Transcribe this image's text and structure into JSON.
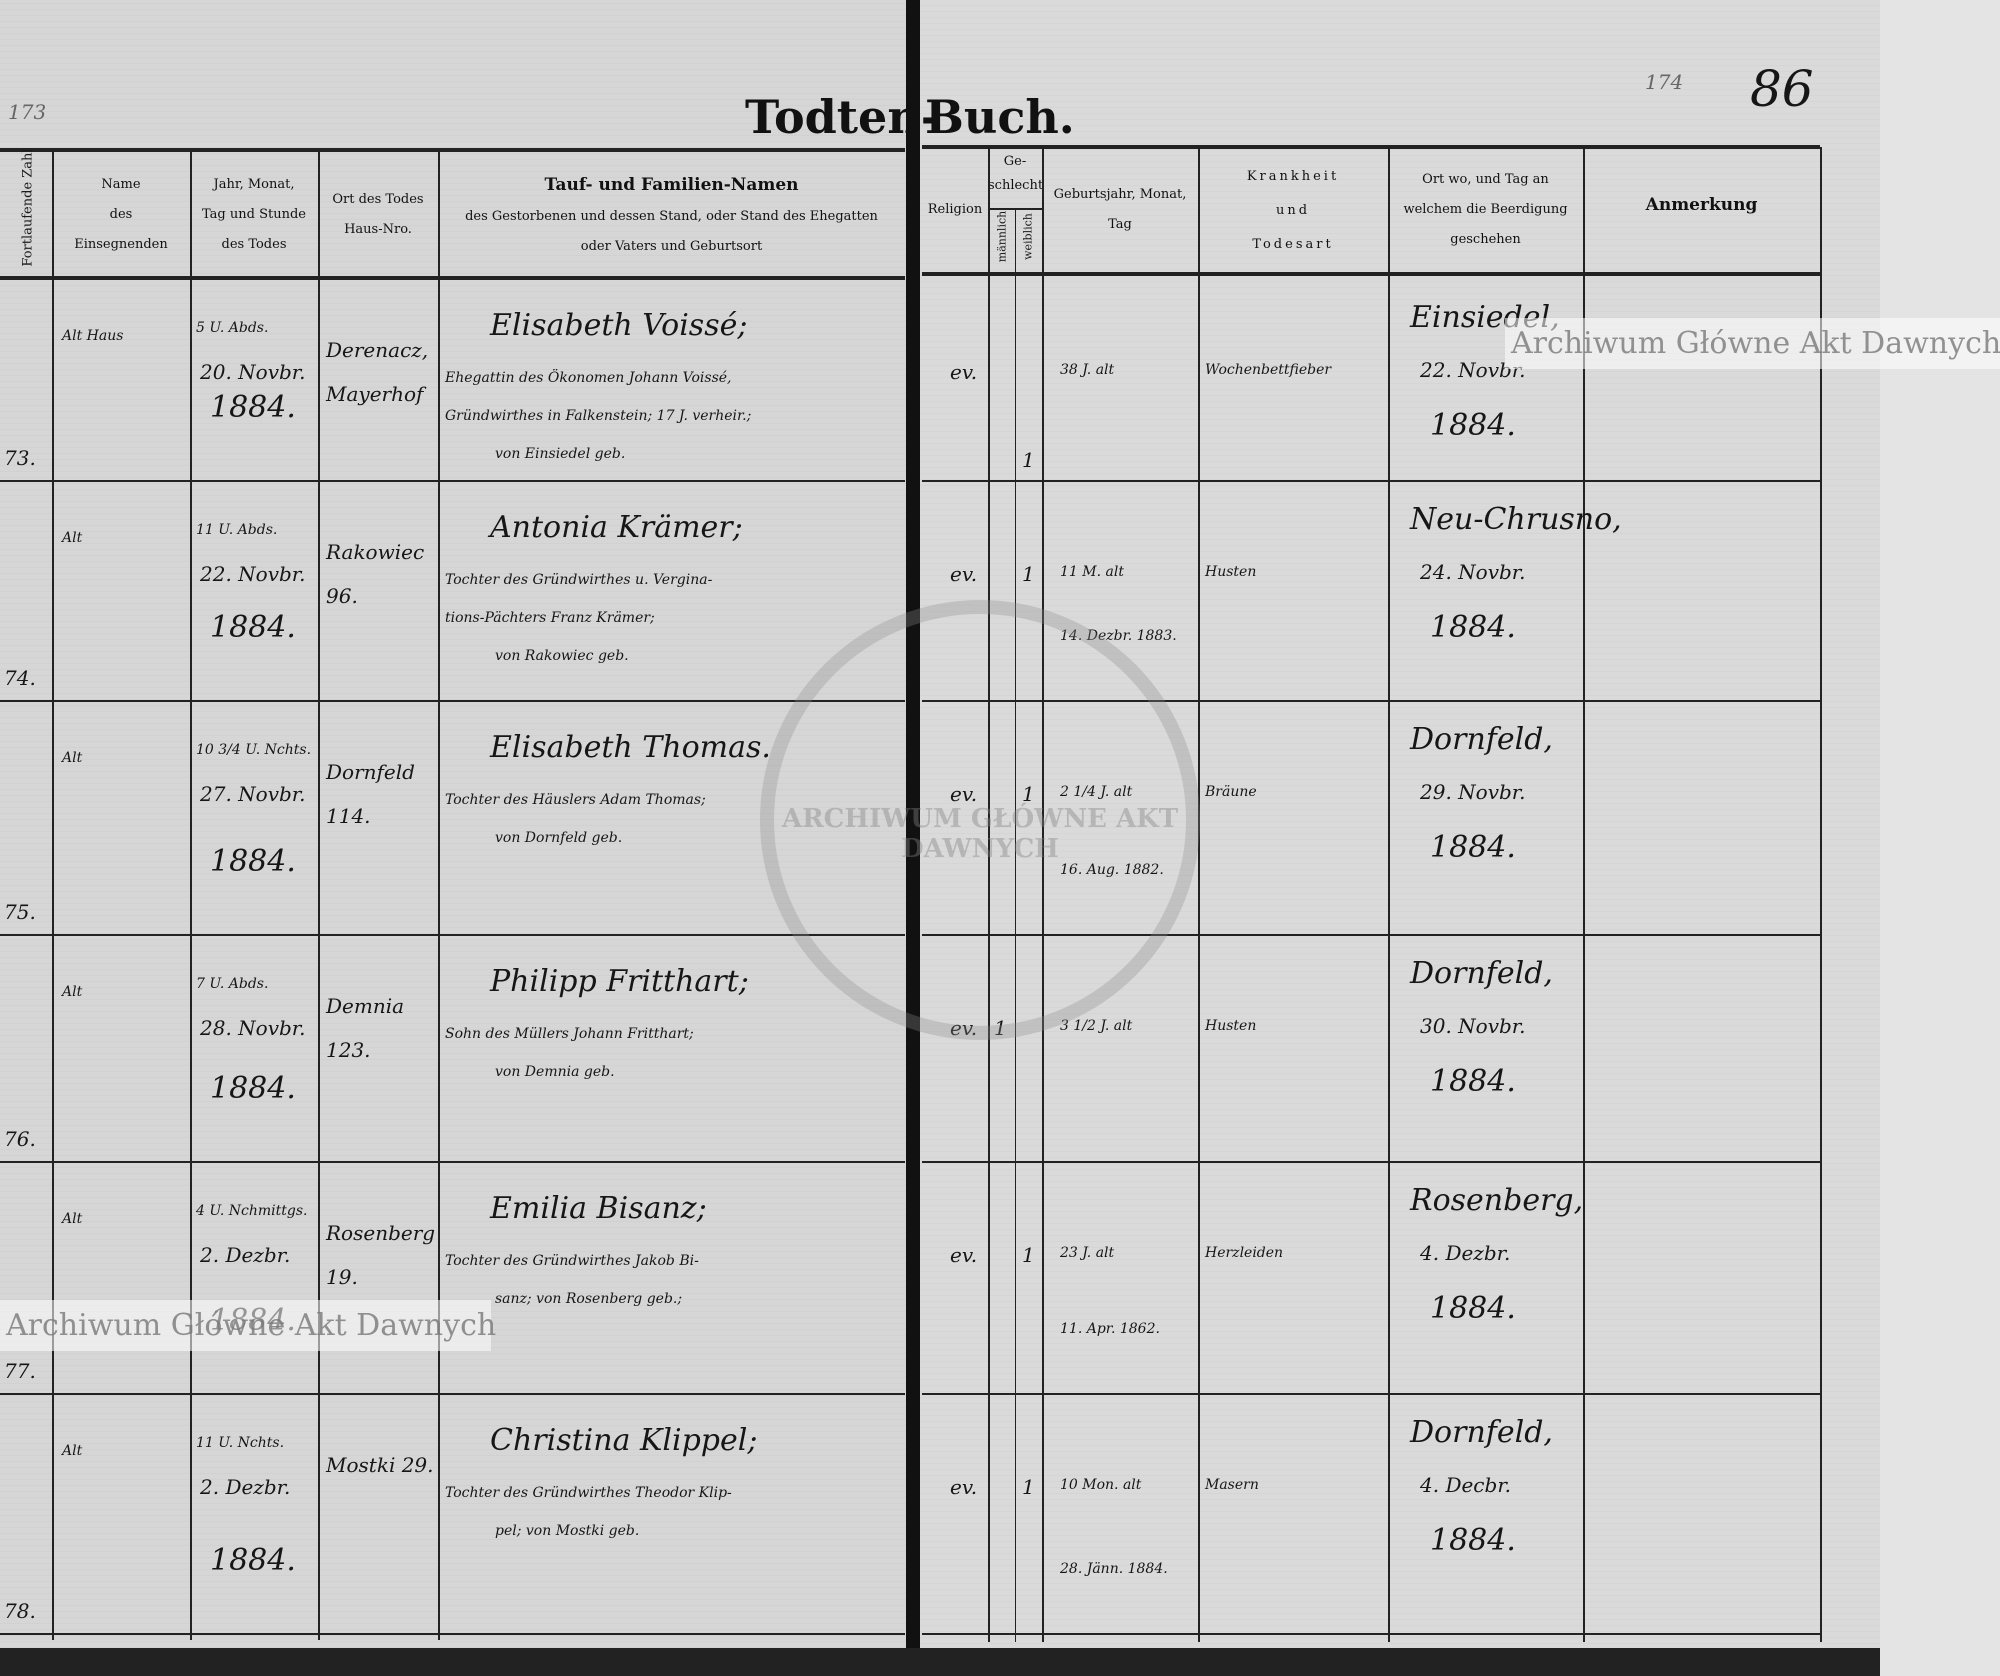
{
  "folio": {
    "left_number": "173",
    "right_number": "174",
    "page_number": "86"
  },
  "title": {
    "left": "Todten-",
    "right": "Buch."
  },
  "headers_left": {
    "number": "Fortlaufende Zahl",
    "officiant": [
      "Name",
      "des",
      "Einsegnenden"
    ],
    "date": [
      "Jahr, Monat,",
      "Tag und Stunde",
      "des Todes"
    ],
    "place": [
      "Ort des Todes",
      "Haus-Nro."
    ],
    "name_title": "Tauf- und Familien-Namen",
    "name_sub": [
      "des Gestorbenen und dessen Stand, oder Stand des Ehegatten",
      "oder Vaters und Geburtsort"
    ]
  },
  "headers_right": {
    "religion": "Religion",
    "sex": [
      "Ge-",
      "schlecht"
    ],
    "male": "männlich",
    "female": "weiblich",
    "birth": [
      "Geburtsjahr, Monat,",
      "Tag"
    ],
    "illness": [
      "Krankheit",
      "und",
      "Todesart"
    ],
    "burial": [
      "Ort wo, und Tag an",
      "welchem die Beerdigung",
      "geschehen"
    ],
    "remark": "Anmerkung"
  },
  "entries": [
    {
      "no": "73.",
      "officiant": "Alt Haus",
      "hour": "5 U. Abds.",
      "day": "20. Novbr.",
      "year": "1884.",
      "place": "Derenacz, Mayerhof",
      "name": "Elisabeth Voissé;",
      "desc": [
        "Ehegattin des Ökonomen Johann Voissé,",
        "Gründwirthes in Falkenstein; 17 J. verheir.;",
        "von Einsiedel geb."
      ],
      "religion": "ev.",
      "male": "",
      "female": "1",
      "age": "38 J. alt",
      "birth_date": "",
      "illness": "Wochenbettfieber",
      "burial_place": "Einsiedel,",
      "burial_day": "22. Novbr.",
      "burial_year": "1884."
    },
    {
      "no": "74.",
      "officiant": "Alt",
      "hour": "11 U. Abds.",
      "day": "22. Novbr.",
      "year": "1884.",
      "place": "Rakowiec 96.",
      "name": "Antonia Krämer;",
      "desc": [
        "Tochter des Gründwirthes u. Vergina-",
        "tions-Pächters Franz Krämer;",
        "von Rakowiec geb."
      ],
      "religion": "ev.",
      "male": "",
      "female": "1",
      "age": "11 M. alt",
      "birth_date": "14. Dezbr. 1883.",
      "illness": "Husten",
      "burial_place": "Neu-Chrusno,",
      "burial_day": "24. Novbr.",
      "burial_year": "1884."
    },
    {
      "no": "75.",
      "officiant": "Alt",
      "hour": "10 3/4 U. Nchts.",
      "day": "27. Novbr.",
      "year": "1884.",
      "place": "Dornfeld 114.",
      "name": "Elisabeth Thomas.",
      "desc": [
        "Tochter des Häuslers Adam Thomas;",
        "von Dornfeld geb."
      ],
      "religion": "ev.",
      "male": "",
      "female": "1",
      "age": "2 1/4 J. alt",
      "birth_date": "16. Aug. 1882.",
      "illness": "Bräune",
      "burial_place": "Dornfeld,",
      "burial_day": "29. Novbr.",
      "burial_year": "1884."
    },
    {
      "no": "76.",
      "officiant": "Alt",
      "hour": "7 U. Abds.",
      "day": "28. Novbr.",
      "year": "1884.",
      "place": "Demnia 123.",
      "name": "Philipp Fritthart;",
      "desc": [
        "Sohn des Müllers Johann Fritthart;",
        "von Demnia geb."
      ],
      "religion": "ev.",
      "male": "1",
      "female": "",
      "age": "3 1/2 J. alt",
      "birth_date": "",
      "illness": "Husten",
      "burial_place": "Dornfeld,",
      "burial_day": "30. Novbr.",
      "burial_year": "1884."
    },
    {
      "no": "77.",
      "officiant": "Alt",
      "hour": "4 U. Nchmittgs.",
      "day": "2. Dezbr.",
      "year": "1884.",
      "place": "Rosenberg 19.",
      "name": "Emilia Bisanz;",
      "desc": [
        "Tochter des Gründwirthes Jakob Bi-",
        "sanz; von Rosenberg geb.;"
      ],
      "religion": "ev.",
      "male": "",
      "female": "1",
      "age": "23 J. alt",
      "birth_date": "11. Apr. 1862.",
      "illness": "Herzleiden",
      "burial_place": "Rosenberg,",
      "burial_day": "4. Dezbr.",
      "burial_year": "1884."
    },
    {
      "no": "78.",
      "officiant": "Alt",
      "hour": "11 U. Nchts.",
      "day": "2. Dezbr.",
      "year": "1884.",
      "place": "Mostki 29.",
      "name": "Christina Klippel;",
      "desc": [
        "Tochter des Gründwirthes Theodor Klip-",
        "pel; von Mostki geb."
      ],
      "religion": "ev.",
      "male": "",
      "female": "1",
      "age": "10 Mon. alt",
      "birth_date": "28. Jänn. 1884.",
      "illness": "Masern",
      "burial_place": "Dornfeld,",
      "burial_day": "4. Decbr.",
      "burial_year": "1884."
    }
  ],
  "watermark": "Archiwum Główne Akt Dawnych",
  "stamp_text": "ARCHIWUM GŁÓWNE AKT DAWNYCH"
}
